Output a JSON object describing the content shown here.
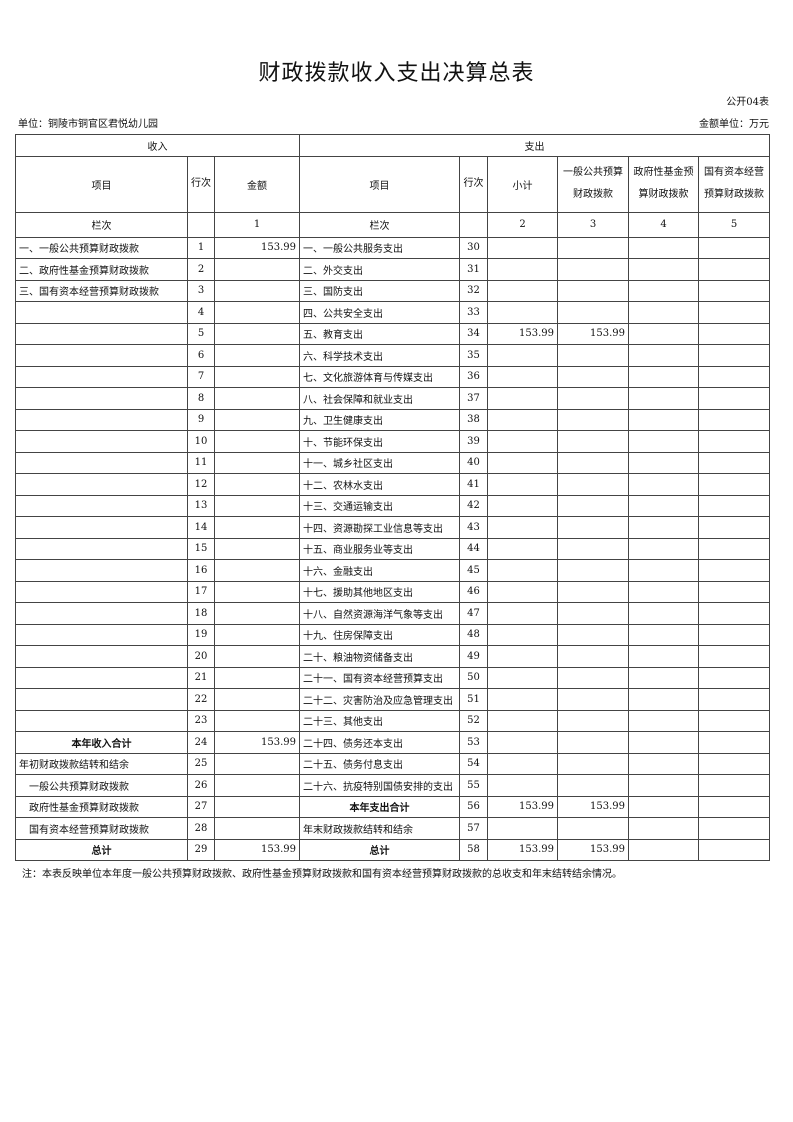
{
  "title": "财政拨款收入支出决算总表",
  "form_no": "公开04表",
  "unit": "单位：铜陵市铜官区君悦幼儿园",
  "money_unit": "金额单位：万元",
  "headers": {
    "income": "收入",
    "expense": "支出",
    "item": "项目",
    "row_no": "行次",
    "amount": "金额",
    "subtotal": "小计",
    "general": "一般公共预算财政拨款",
    "fund": "政府性基金预算财政拨款",
    "capital": "国有资本经营预算财政拨款",
    "col_label": "栏次",
    "col1": "1",
    "col2": "2",
    "col3": "3",
    "col4": "4",
    "col5": "5"
  },
  "rows": [
    {
      "l": "一、一般公共预算财政拨款",
      "ln": "1",
      "la": "153.99",
      "r": "一、一般公共服务支出",
      "rn": "30",
      "s": "",
      "g": "",
      "f": "",
      "k": ""
    },
    {
      "l": "二、政府性基金预算财政拨款",
      "ln": "2",
      "la": "",
      "r": "二、外交支出",
      "rn": "31",
      "s": "",
      "g": "",
      "f": "",
      "k": ""
    },
    {
      "l": "三、国有资本经营预算财政拨款",
      "ln": "3",
      "la": "",
      "r": "三、国防支出",
      "rn": "32",
      "s": "",
      "g": "",
      "f": "",
      "k": ""
    },
    {
      "l": "",
      "ln": "4",
      "la": "",
      "r": "四、公共安全支出",
      "rn": "33",
      "s": "",
      "g": "",
      "f": "",
      "k": ""
    },
    {
      "l": "",
      "ln": "5",
      "la": "",
      "r": "五、教育支出",
      "rn": "34",
      "s": "153.99",
      "g": "153.99",
      "f": "",
      "k": ""
    },
    {
      "l": "",
      "ln": "6",
      "la": "",
      "r": "六、科学技术支出",
      "rn": "35",
      "s": "",
      "g": "",
      "f": "",
      "k": ""
    },
    {
      "l": "",
      "ln": "7",
      "la": "",
      "r": "七、文化旅游体育与传媒支出",
      "rn": "36",
      "s": "",
      "g": "",
      "f": "",
      "k": ""
    },
    {
      "l": "",
      "ln": "8",
      "la": "",
      "r": "八、社会保障和就业支出",
      "rn": "37",
      "s": "",
      "g": "",
      "f": "",
      "k": ""
    },
    {
      "l": "",
      "ln": "9",
      "la": "",
      "r": "九、卫生健康支出",
      "rn": "38",
      "s": "",
      "g": "",
      "f": "",
      "k": ""
    },
    {
      "l": "",
      "ln": "10",
      "la": "",
      "r": "十、节能环保支出",
      "rn": "39",
      "s": "",
      "g": "",
      "f": "",
      "k": ""
    },
    {
      "l": "",
      "ln": "11",
      "la": "",
      "r": "十一、城乡社区支出",
      "rn": "40",
      "s": "",
      "g": "",
      "f": "",
      "k": ""
    },
    {
      "l": "",
      "ln": "12",
      "la": "",
      "r": "十二、农林水支出",
      "rn": "41",
      "s": "",
      "g": "",
      "f": "",
      "k": ""
    },
    {
      "l": "",
      "ln": "13",
      "la": "",
      "r": "十三、交通运输支出",
      "rn": "42",
      "s": "",
      "g": "",
      "f": "",
      "k": ""
    },
    {
      "l": "",
      "ln": "14",
      "la": "",
      "r": "十四、资源勘探工业信息等支出",
      "rn": "43",
      "s": "",
      "g": "",
      "f": "",
      "k": ""
    },
    {
      "l": "",
      "ln": "15",
      "la": "",
      "r": "十五、商业服务业等支出",
      "rn": "44",
      "s": "",
      "g": "",
      "f": "",
      "k": ""
    },
    {
      "l": "",
      "ln": "16",
      "la": "",
      "r": "十六、金融支出",
      "rn": "45",
      "s": "",
      "g": "",
      "f": "",
      "k": ""
    },
    {
      "l": "",
      "ln": "17",
      "la": "",
      "r": "十七、援助其他地区支出",
      "rn": "46",
      "s": "",
      "g": "",
      "f": "",
      "k": ""
    },
    {
      "l": "",
      "ln": "18",
      "la": "",
      "r": "十八、自然资源海洋气象等支出",
      "rn": "47",
      "s": "",
      "g": "",
      "f": "",
      "k": ""
    },
    {
      "l": "",
      "ln": "19",
      "la": "",
      "r": "十九、住房保障支出",
      "rn": "48",
      "s": "",
      "g": "",
      "f": "",
      "k": ""
    },
    {
      "l": "",
      "ln": "20",
      "la": "",
      "r": "二十、粮油物资储备支出",
      "rn": "49",
      "s": "",
      "g": "",
      "f": "",
      "k": ""
    },
    {
      "l": "",
      "ln": "21",
      "la": "",
      "r": "二十一、国有资本经营预算支出",
      "rn": "50",
      "s": "",
      "g": "",
      "f": "",
      "k": ""
    },
    {
      "l": "",
      "ln": "22",
      "la": "",
      "r": "二十二、灾害防治及应急管理支出",
      "rn": "51",
      "s": "",
      "g": "",
      "f": "",
      "k": ""
    },
    {
      "l": "",
      "ln": "23",
      "la": "",
      "r": "二十三、其他支出",
      "rn": "52",
      "s": "",
      "g": "",
      "f": "",
      "k": ""
    },
    {
      "l": "本年收入合计",
      "ln": "24",
      "la": "153.99",
      "r": "二十四、债务还本支出",
      "rn": "53",
      "s": "",
      "g": "",
      "f": "",
      "k": "",
      "lb": true
    },
    {
      "l": "年初财政拨款结转和结余",
      "ln": "25",
      "la": "",
      "r": "二十五、债务付息支出",
      "rn": "54",
      "s": "",
      "g": "",
      "f": "",
      "k": ""
    },
    {
      "l": "　一般公共预算财政拨款",
      "ln": "26",
      "la": "",
      "r": "二十六、抗疫特别国债安排的支出",
      "rn": "55",
      "s": "",
      "g": "",
      "f": "",
      "k": ""
    },
    {
      "l": "　政府性基金预算财政拨款",
      "ln": "27",
      "la": "",
      "r": "本年支出合计",
      "rn": "56",
      "s": "153.99",
      "g": "153.99",
      "f": "",
      "k": "",
      "rb": true
    },
    {
      "l": "　国有资本经营预算财政拨款",
      "ln": "28",
      "la": "",
      "r": "年末财政拨款结转和结余",
      "rn": "57",
      "s": "",
      "g": "",
      "f": "",
      "k": ""
    },
    {
      "l": "总计",
      "ln": "29",
      "la": "153.99",
      "r": "总计",
      "rn": "58",
      "s": "153.99",
      "g": "153.99",
      "f": "",
      "k": "",
      "lb": true,
      "rb": true
    }
  ],
  "note": "注：本表反映单位本年度一般公共预算财政拨款、政府性基金预算财政拨款和国有资本经营预算财政拨款的总收支和年末结转结余情况。"
}
